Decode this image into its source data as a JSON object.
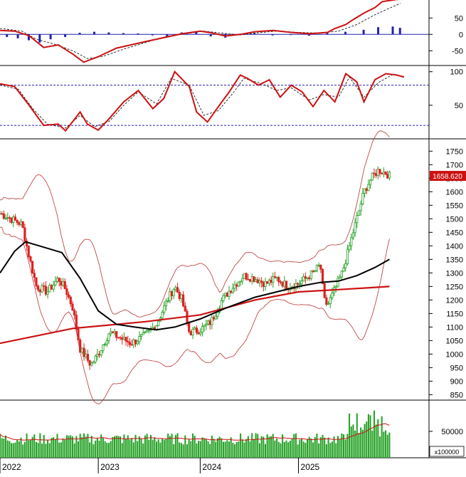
{
  "chart_data": {
    "type": "candlestick-with-indicators",
    "x_axis": {
      "ticks": [
        "2022",
        "2023",
        "2024",
        "2025"
      ]
    },
    "colors": {
      "up": "#22a022",
      "down": "#dd2222",
      "ma_long": "#cc1111",
      "ma_mid": "#000000",
      "bands": "#bb3333",
      "volume": "#22a022",
      "signal": "#000000",
      "histogram": "#2222aa",
      "last_price_bg": "#cc1111"
    },
    "panels": [
      {
        "name": "macd",
        "y_ticks": [
          50,
          0,
          -50
        ],
        "ylim": [
          -95,
          105
        ],
        "macd_line": [
          [
            0,
            12
          ],
          [
            0.04,
            10
          ],
          [
            0.08,
            -4
          ],
          [
            0.12,
            -40
          ],
          [
            0.16,
            -32
          ],
          [
            0.2,
            -60
          ],
          [
            0.23,
            -85
          ],
          [
            0.27,
            -68
          ],
          [
            0.32,
            -42
          ],
          [
            0.36,
            -32
          ],
          [
            0.4,
            -22
          ],
          [
            0.45,
            -10
          ],
          [
            0.5,
            2
          ],
          [
            0.55,
            10
          ],
          [
            0.58,
            5
          ],
          [
            0.62,
            -5
          ],
          [
            0.66,
            0
          ],
          [
            0.7,
            8
          ],
          [
            0.75,
            12
          ],
          [
            0.8,
            6
          ],
          [
            0.85,
            2
          ],
          [
            0.9,
            6
          ],
          [
            0.92,
            18
          ],
          [
            0.95,
            30
          ],
          [
            0.97,
            45
          ],
          [
            1.0,
            65
          ],
          [
            1.03,
            82
          ],
          [
            1.05,
            100
          ],
          [
            1.08,
            105
          ],
          [
            1.1,
            108
          ]
        ],
        "signal_line": [
          [
            0,
            18
          ],
          [
            0.06,
            10
          ],
          [
            0.1,
            -15
          ],
          [
            0.15,
            -30
          ],
          [
            0.2,
            -50
          ],
          [
            0.24,
            -74
          ],
          [
            0.28,
            -68
          ],
          [
            0.34,
            -45
          ],
          [
            0.4,
            -25
          ],
          [
            0.46,
            -5
          ],
          [
            0.5,
            0
          ],
          [
            0.56,
            10
          ],
          [
            0.6,
            5
          ],
          [
            0.66,
            -2
          ],
          [
            0.7,
            4
          ],
          [
            0.76,
            10
          ],
          [
            0.82,
            6
          ],
          [
            0.88,
            4
          ],
          [
            0.93,
            10
          ],
          [
            0.98,
            30
          ],
          [
            1.03,
            60
          ],
          [
            1.08,
            85
          ],
          [
            1.1,
            95
          ]
        ],
        "histogram": [
          [
            0.02,
            -8
          ],
          [
            0.05,
            -12
          ],
          [
            0.08,
            -18
          ],
          [
            0.11,
            -25
          ],
          [
            0.14,
            -15
          ],
          [
            0.18,
            -8
          ],
          [
            0.22,
            5
          ],
          [
            0.26,
            8
          ],
          [
            0.3,
            6
          ],
          [
            0.34,
            4
          ],
          [
            0.38,
            3
          ],
          [
            0.42,
            -3
          ],
          [
            0.46,
            -5
          ],
          [
            0.5,
            6
          ],
          [
            0.54,
            8
          ],
          [
            0.58,
            -6
          ],
          [
            0.62,
            -10
          ],
          [
            0.66,
            2
          ],
          [
            0.7,
            4
          ],
          [
            0.75,
            -3
          ],
          [
            0.8,
            -2
          ],
          [
            0.85,
            -4
          ],
          [
            0.9,
            5
          ],
          [
            0.95,
            8
          ],
          [
            1.0,
            14
          ],
          [
            1.04,
            22
          ],
          [
            1.08,
            24
          ],
          [
            1.1,
            20
          ]
        ]
      },
      {
        "name": "stochastic",
        "y_ticks": [
          100,
          50
        ],
        "ylim": [
          0,
          105
        ],
        "reference_lines": [
          80,
          20
        ],
        "k_line": [
          [
            0,
            82
          ],
          [
            0.04,
            78
          ],
          [
            0.08,
            50
          ],
          [
            0.12,
            20
          ],
          [
            0.16,
            22
          ],
          [
            0.18,
            12
          ],
          [
            0.22,
            40
          ],
          [
            0.24,
            22
          ],
          [
            0.27,
            13
          ],
          [
            0.3,
            30
          ],
          [
            0.34,
            55
          ],
          [
            0.38,
            72
          ],
          [
            0.42,
            45
          ],
          [
            0.45,
            60
          ],
          [
            0.48,
            100
          ],
          [
            0.52,
            78
          ],
          [
            0.54,
            40
          ],
          [
            0.57,
            25
          ],
          [
            0.6,
            48
          ],
          [
            0.63,
            70
          ],
          [
            0.66,
            95
          ],
          [
            0.68,
            90
          ],
          [
            0.71,
            80
          ],
          [
            0.74,
            88
          ],
          [
            0.77,
            62
          ],
          [
            0.8,
            80
          ],
          [
            0.83,
            70
          ],
          [
            0.86,
            48
          ],
          [
            0.89,
            72
          ],
          [
            0.92,
            55
          ],
          [
            0.95,
            97
          ],
          [
            0.98,
            85
          ],
          [
            1.0,
            55
          ],
          [
            1.03,
            88
          ],
          [
            1.06,
            97
          ],
          [
            1.09,
            95
          ],
          [
            1.11,
            92
          ]
        ],
        "d_line": [
          [
            0,
            80
          ],
          [
            0.05,
            74
          ],
          [
            0.09,
            45
          ],
          [
            0.13,
            22
          ],
          [
            0.18,
            16
          ],
          [
            0.22,
            35
          ],
          [
            0.26,
            18
          ],
          [
            0.3,
            26
          ],
          [
            0.34,
            50
          ],
          [
            0.38,
            70
          ],
          [
            0.43,
            52
          ],
          [
            0.47,
            90
          ],
          [
            0.52,
            80
          ],
          [
            0.56,
            35
          ],
          [
            0.6,
            42
          ],
          [
            0.64,
            68
          ],
          [
            0.67,
            90
          ],
          [
            0.72,
            82
          ],
          [
            0.76,
            72
          ],
          [
            0.8,
            76
          ],
          [
            0.85,
            58
          ],
          [
            0.89,
            66
          ],
          [
            0.93,
            62
          ],
          [
            0.96,
            92
          ],
          [
            1.0,
            62
          ],
          [
            1.04,
            84
          ],
          [
            1.08,
            96
          ],
          [
            1.11,
            93
          ]
        ]
      },
      {
        "name": "price",
        "y_ticks": [
          1750,
          1700,
          1650,
          1600,
          1550,
          1500,
          1450,
          1400,
          1350,
          1300,
          1250,
          1200,
          1150,
          1100,
          1050,
          1000,
          950,
          900,
          850
        ],
        "ylim": [
          830,
          1785
        ],
        "last_price_label": "1658.620",
        "last_price": 1658.62
      },
      {
        "name": "volume",
        "y_ticks": [
          50000
        ],
        "unit_label": "x100000",
        "ylim": [
          0,
          105000
        ]
      }
    ]
  }
}
